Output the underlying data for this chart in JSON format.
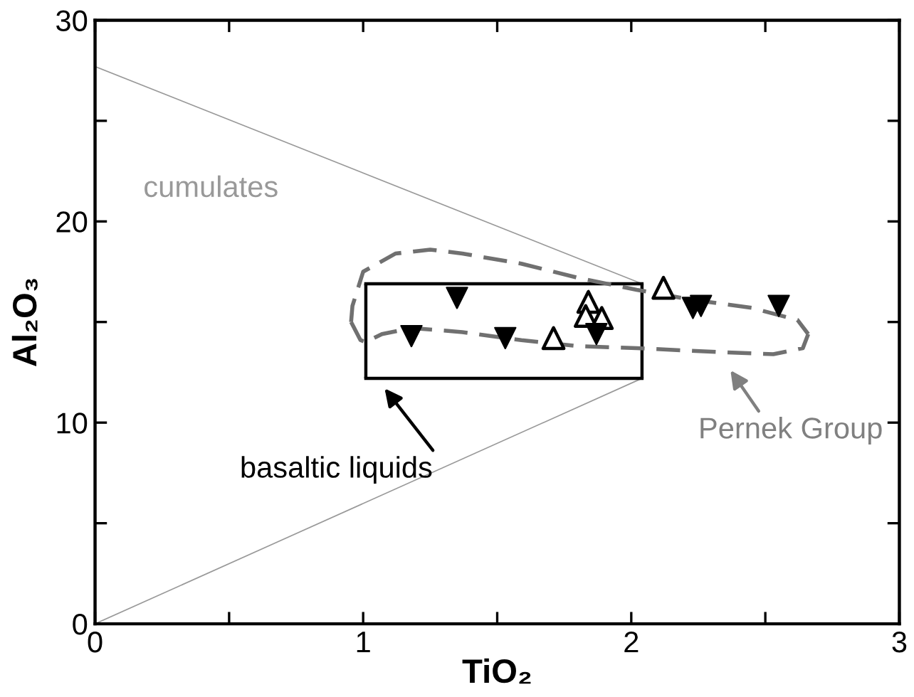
{
  "chart_data": {
    "type": "scatter",
    "xlabel": "TiO₂",
    "ylabel": "Al₂O₃",
    "xlim": [
      0,
      3
    ],
    "ylim": [
      0,
      30
    ],
    "xticks": [
      0,
      {
        "value": 0.5,
        "label": null
      },
      1,
      {
        "value": 1.5,
        "label": null
      },
      2,
      {
        "value": 2.5,
        "label": null
      },
      3
    ],
    "yticks": [
      0,
      {
        "value": 5,
        "label": null
      },
      10,
      {
        "value": 15,
        "label": null
      },
      20,
      {
        "value": 25,
        "label": null
      },
      30
    ],
    "grid": false,
    "series": [
      {
        "type": "line",
        "color": "#999999",
        "x": [
          0,
          2.04
        ],
        "values": [
          27.7,
          16.9
        ],
        "marker": "none",
        "line_style": "solid"
      },
      {
        "type": "line",
        "color": "#999999",
        "x": [
          0,
          2.04
        ],
        "values": [
          0,
          12.2
        ],
        "marker": "none",
        "line_style": "solid"
      },
      {
        "type": "line",
        "color": "#000000",
        "x": [
          1.01,
          2.04
        ],
        "values": [
          12.2,
          12.2
        ],
        "errors": [
          [
            12.2,
            16.9
          ],
          [
            12.2,
            16.9
          ]
        ],
        "marker": "none",
        "line_style": "solid"
      },
      {
        "type": "line",
        "color": "#000000",
        "x": [
          1.01,
          2.04
        ],
        "values": [
          16.9,
          16.9
        ],
        "marker": "none",
        "line_style": "solid"
      },
      {
        "type": "line",
        "color": "#707070",
        "x": [
          0.955,
          0.96,
          1.0,
          1.12,
          1.25,
          1.37,
          1.59,
          1.8,
          2.02,
          2.23,
          2.45,
          2.62,
          2.66
        ],
        "values": [
          15.0,
          15.8,
          17.5,
          18.4,
          18.6,
          18.4,
          17.9,
          17.2,
          16.6,
          16.1,
          15.7,
          15.1,
          14.4
        ],
        "marker": "none",
        "line_style": "dashed"
      },
      {
        "type": "line",
        "color": "#707070",
        "x": [
          0.955,
          0.99,
          1.01,
          1.07,
          1.18,
          1.37,
          1.59,
          1.8,
          2.02,
          2.34,
          2.53,
          2.64,
          2.66
        ],
        "values": [
          15.0,
          14.1,
          14.0,
          14.4,
          14.7,
          14.5,
          14.1,
          13.8,
          13.7,
          13.5,
          13.4,
          13.7,
          14.4
        ],
        "marker": "none",
        "line_style": "dashed"
      },
      {
        "color": "#000000",
        "x": [
          1.18,
          1.35,
          1.53,
          1.87,
          2.23,
          2.26,
          2.55
        ],
        "values": [
          14.3,
          16.2,
          14.2,
          14.4,
          15.7,
          15.8,
          15.8
        ],
        "marker": "triangle-down"
      },
      {
        "color": "#000000",
        "x": [
          1.71,
          1.84,
          1.83,
          1.89,
          2.12
        ],
        "values": [
          14.2,
          16.0,
          15.3,
          15.2,
          16.7
        ],
        "marker": "triangle-open"
      }
    ],
    "annotations": [
      "cumulates",
      "basaltic liquids",
      "Pernek Group"
    ]
  }
}
